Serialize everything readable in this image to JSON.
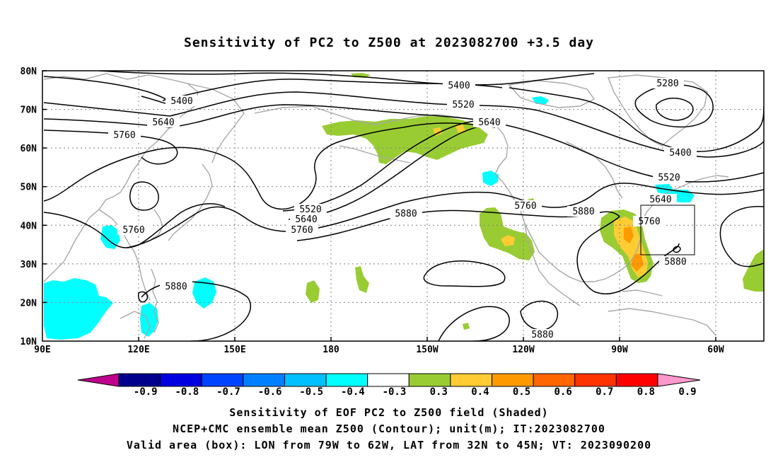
{
  "title": "Sensitivity of PC2 to Z500 at 2023082700 +3.5 day",
  "lat_labels": [
    "80N",
    "70N",
    "60N",
    "50N",
    "40N",
    "30N",
    "20N",
    "10N"
  ],
  "lon_labels": [
    "90E",
    "120E",
    "150E",
    "180",
    "150W",
    "120W",
    "90W",
    "60W"
  ],
  "contour_labels": [
    {
      "text": "5400"
    },
    {
      "text": "5400"
    },
    {
      "text": "5520"
    },
    {
      "text": "5640"
    },
    {
      "text": "5640"
    },
    {
      "text": "5760"
    },
    {
      "text": "5280"
    },
    {
      "text": "5400"
    },
    {
      "text": "5520"
    },
    {
      "text": "5640"
    },
    {
      "text": "5760"
    },
    {
      "text": "5880"
    },
    {
      "text": "5520"
    },
    {
      "text": "5640"
    },
    {
      "text": "5760"
    },
    {
      "text": "5880"
    },
    {
      "text": "5760"
    },
    {
      "text": "5880"
    },
    {
      "text": "5760"
    },
    {
      "text": "5880"
    },
    {
      "text": "5880"
    }
  ],
  "colorbar": {
    "labels": [
      "-0.9",
      "-0.8",
      "-0.7",
      "-0.6",
      "-0.5",
      "-0.4",
      "-0.3",
      "0.3",
      "0.4",
      "0.5",
      "0.6",
      "0.7",
      "0.8",
      "0.9"
    ],
    "colors": [
      "#00008c",
      "#0000e0",
      "#0044ff",
      "#0080ff",
      "#00c0ff",
      "#00ffff",
      "#ffffff",
      "#99cc33",
      "#ffcc33",
      "#ff9900",
      "#ff6600",
      "#ff3300",
      "#ff0000"
    ],
    "low_arrow_color": "#c0008c",
    "high_arrow_color": "#ff99cc"
  },
  "caption": {
    "line1": "Sensitivity of EOF PC2 to Z500 field (Shaded)",
    "line2": "NCEP+CMC ensemble mean Z500 (Contour); unit(m); IT:2023082700",
    "line3": "Valid area (box): LON from 79W to 62W, LAT from 32N to 45N; VT: 2023090200"
  }
}
